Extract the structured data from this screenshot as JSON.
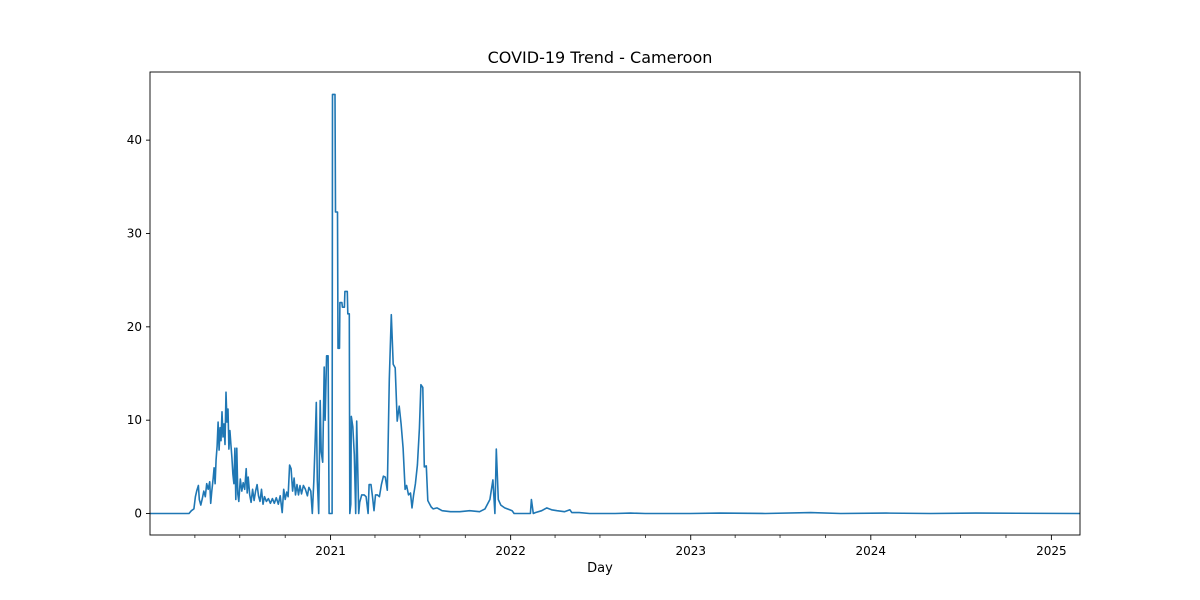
{
  "chart_data": {
    "type": "line",
    "title": "COVID-19 Trend - Cameroon",
    "xlabel": "Day",
    "ylabel": "",
    "x_axis_type": "date",
    "xlim": [
      "2020-01-01",
      "2025-02-28"
    ],
    "ylim": [
      -2.3,
      47.3
    ],
    "x_ticks": [
      {
        "date": "2021-01-01",
        "label": "2021"
      },
      {
        "date": "2022-01-01",
        "label": "2022"
      },
      {
        "date": "2023-01-01",
        "label": "2023"
      },
      {
        "date": "2024-01-01",
        "label": "2024"
      },
      {
        "date": "2025-01-01",
        "label": "2025"
      }
    ],
    "x_minor_ticks": [
      "2020-04-01",
      "2020-07-01",
      "2020-10-01",
      "2021-04-01",
      "2021-07-01",
      "2021-10-01",
      "2022-04-01",
      "2022-07-01",
      "2022-10-01",
      "2023-04-01",
      "2023-07-01",
      "2023-10-01",
      "2024-04-01",
      "2024-07-01",
      "2024-10-01"
    ],
    "y_ticks": [
      0,
      10,
      20,
      30,
      40
    ],
    "grid": false,
    "legend": false,
    "line_color": "#1f77b4",
    "series": [
      {
        "points": [
          [
            "2020-01-01",
            0
          ],
          [
            "2020-03-20",
            0
          ],
          [
            "2020-03-25",
            0.3
          ],
          [
            "2020-03-30",
            0.5
          ],
          [
            "2020-04-02",
            1.8
          ],
          [
            "2020-04-05",
            2.5
          ],
          [
            "2020-04-08",
            3.0
          ],
          [
            "2020-04-10",
            1.5
          ],
          [
            "2020-04-13",
            0.9
          ],
          [
            "2020-04-16",
            1.6
          ],
          [
            "2020-04-19",
            2.4
          ],
          [
            "2020-04-22",
            1.8
          ],
          [
            "2020-04-25",
            3.2
          ],
          [
            "2020-04-28",
            2.6
          ],
          [
            "2020-05-01",
            3.4
          ],
          [
            "2020-05-03",
            1.1
          ],
          [
            "2020-05-05",
            2.3
          ],
          [
            "2020-05-08",
            3.8
          ],
          [
            "2020-05-10",
            4.9
          ],
          [
            "2020-05-12",
            3.2
          ],
          [
            "2020-05-14",
            5.8
          ],
          [
            "2020-05-16",
            7.2
          ],
          [
            "2020-05-18",
            9.8
          ],
          [
            "2020-05-20",
            6.8
          ],
          [
            "2020-05-22",
            9.2
          ],
          [
            "2020-05-24",
            7.8
          ],
          [
            "2020-05-26",
            10.9
          ],
          [
            "2020-05-28",
            8.2
          ],
          [
            "2020-05-30",
            9.6
          ],
          [
            "2020-06-01",
            7.4
          ],
          [
            "2020-06-03",
            13.0
          ],
          [
            "2020-06-05",
            9.8
          ],
          [
            "2020-06-07",
            11.2
          ],
          [
            "2020-06-09",
            6.9
          ],
          [
            "2020-06-11",
            8.9
          ],
          [
            "2020-06-13",
            7.4
          ],
          [
            "2020-06-15",
            6.0
          ],
          [
            "2020-06-17",
            4.2
          ],
          [
            "2020-06-19",
            3.2
          ],
          [
            "2020-06-21",
            7.0
          ],
          [
            "2020-06-23",
            1.5
          ],
          [
            "2020-06-25",
            7.0
          ],
          [
            "2020-06-27",
            2.1
          ],
          [
            "2020-06-29",
            1.3
          ],
          [
            "2020-07-02",
            3.7
          ],
          [
            "2020-07-05",
            2.4
          ],
          [
            "2020-07-08",
            3.3
          ],
          [
            "2020-07-11",
            2.6
          ],
          [
            "2020-07-14",
            4.8
          ],
          [
            "2020-07-16",
            2.2
          ],
          [
            "2020-07-18",
            3.9
          ],
          [
            "2020-07-21",
            2.0
          ],
          [
            "2020-07-24",
            1.2
          ],
          [
            "2020-07-27",
            2.6
          ],
          [
            "2020-07-30",
            1.4
          ],
          [
            "2020-08-02",
            2.4
          ],
          [
            "2020-08-05",
            3.1
          ],
          [
            "2020-08-08",
            1.9
          ],
          [
            "2020-08-11",
            1.3
          ],
          [
            "2020-08-14",
            2.6
          ],
          [
            "2020-08-17",
            1.0
          ],
          [
            "2020-08-20",
            1.8
          ],
          [
            "2020-08-24",
            1.3
          ],
          [
            "2020-08-28",
            1.6
          ],
          [
            "2020-09-01",
            1.1
          ],
          [
            "2020-09-05",
            1.6
          ],
          [
            "2020-09-09",
            1.1
          ],
          [
            "2020-09-13",
            1.7
          ],
          [
            "2020-09-17",
            1.0
          ],
          [
            "2020-09-21",
            1.9
          ],
          [
            "2020-09-25",
            0.1
          ],
          [
            "2020-09-28",
            2.6
          ],
          [
            "2020-10-01",
            1.5
          ],
          [
            "2020-10-04",
            2.3
          ],
          [
            "2020-10-07",
            1.8
          ],
          [
            "2020-10-10",
            5.2
          ],
          [
            "2020-10-13",
            4.8
          ],
          [
            "2020-10-16",
            2.4
          ],
          [
            "2020-10-19",
            3.8
          ],
          [
            "2020-10-22",
            2.0
          ],
          [
            "2020-10-25",
            3.1
          ],
          [
            "2020-10-28",
            2.0
          ],
          [
            "2020-10-31",
            3.0
          ],
          [
            "2020-11-03",
            2.1
          ],
          [
            "2020-11-07",
            3.0
          ],
          [
            "2020-11-11",
            2.6
          ],
          [
            "2020-11-15",
            1.9
          ],
          [
            "2020-11-18",
            2.8
          ],
          [
            "2020-11-22",
            2.4
          ],
          [
            "2020-11-25",
            0
          ],
          [
            "2020-11-28",
            3.4
          ],
          [
            "2020-12-01",
            8.2
          ],
          [
            "2020-12-03",
            11.9
          ],
          [
            "2020-12-05",
            3.6
          ],
          [
            "2020-12-08",
            0
          ],
          [
            "2020-12-11",
            12.1
          ],
          [
            "2020-12-13",
            6.6
          ],
          [
            "2020-12-16",
            5.5
          ],
          [
            "2020-12-19",
            15.7
          ],
          [
            "2020-12-21",
            10.0
          ],
          [
            "2020-12-24",
            16.9
          ],
          [
            "2020-12-27",
            16.9
          ],
          [
            "2020-12-29",
            0
          ],
          [
            "2021-01-04",
            0
          ],
          [
            "2021-01-05",
            44.9
          ],
          [
            "2021-01-10",
            44.9
          ],
          [
            "2021-01-11",
            32.3
          ],
          [
            "2021-01-15",
            32.3
          ],
          [
            "2021-01-16",
            17.7
          ],
          [
            "2021-01-19",
            17.7
          ],
          [
            "2021-01-20",
            22.6
          ],
          [
            "2021-01-24",
            22.6
          ],
          [
            "2021-01-25",
            22.1
          ],
          [
            "2021-01-29",
            22.1
          ],
          [
            "2021-01-30",
            23.8
          ],
          [
            "2021-02-04",
            23.8
          ],
          [
            "2021-02-05",
            21.4
          ],
          [
            "2021-02-08",
            21.4
          ],
          [
            "2021-02-09",
            0
          ],
          [
            "2021-02-11",
            1.0
          ],
          [
            "2021-02-12",
            10.4
          ],
          [
            "2021-02-15",
            9.3
          ],
          [
            "2021-02-18",
            6.3
          ],
          [
            "2021-02-21",
            0
          ],
          [
            "2021-02-23",
            9.9
          ],
          [
            "2021-02-25",
            5.1
          ],
          [
            "2021-02-27",
            0
          ],
          [
            "2021-03-01",
            1.2
          ],
          [
            "2021-03-05",
            2.0
          ],
          [
            "2021-03-10",
            2.0
          ],
          [
            "2021-03-14",
            1.8
          ],
          [
            "2021-03-18",
            0
          ],
          [
            "2021-03-20",
            3.1
          ],
          [
            "2021-03-24",
            3.1
          ],
          [
            "2021-03-27",
            1.8
          ],
          [
            "2021-03-30",
            0.3
          ],
          [
            "2021-04-02",
            2.0
          ],
          [
            "2021-04-06",
            2.0
          ],
          [
            "2021-04-10",
            1.8
          ],
          [
            "2021-04-14",
            3.1
          ],
          [
            "2021-04-18",
            4.0
          ],
          [
            "2021-04-22",
            3.9
          ],
          [
            "2021-04-26",
            2.5
          ],
          [
            "2021-04-30",
            14.4
          ],
          [
            "2021-05-04",
            21.3
          ],
          [
            "2021-05-08",
            16.0
          ],
          [
            "2021-05-12",
            15.6
          ],
          [
            "2021-05-16",
            9.9
          ],
          [
            "2021-05-20",
            11.5
          ],
          [
            "2021-05-24",
            9.6
          ],
          [
            "2021-05-28",
            7.0
          ],
          [
            "2021-06-01",
            2.6
          ],
          [
            "2021-06-04",
            3.0
          ],
          [
            "2021-06-08",
            2.0
          ],
          [
            "2021-06-12",
            2.2
          ],
          [
            "2021-06-15",
            0.6
          ],
          [
            "2021-06-18",
            1.9
          ],
          [
            "2021-06-22",
            3.2
          ],
          [
            "2021-06-26",
            5.2
          ],
          [
            "2021-06-30",
            9.1
          ],
          [
            "2021-07-03",
            13.8
          ],
          [
            "2021-07-07",
            13.5
          ],
          [
            "2021-07-10",
            5.0
          ],
          [
            "2021-07-14",
            5.1
          ],
          [
            "2021-07-17",
            1.4
          ],
          [
            "2021-07-20",
            1.1
          ],
          [
            "2021-07-24",
            0.7
          ],
          [
            "2021-07-28",
            0.5
          ],
          [
            "2021-08-05",
            0.6
          ],
          [
            "2021-08-15",
            0.3
          ],
          [
            "2021-09-01",
            0.2
          ],
          [
            "2021-09-20",
            0.2
          ],
          [
            "2021-10-10",
            0.3
          ],
          [
            "2021-10-30",
            0.2
          ],
          [
            "2021-11-10",
            0.5
          ],
          [
            "2021-11-20",
            1.5
          ],
          [
            "2021-11-26",
            3.6
          ],
          [
            "2021-11-30",
            0
          ],
          [
            "2021-12-03",
            6.9
          ],
          [
            "2021-12-07",
            1.5
          ],
          [
            "2021-12-12",
            0.9
          ],
          [
            "2021-12-20",
            0.6
          ],
          [
            "2021-12-30",
            0.4
          ],
          [
            "2022-01-04",
            0.3
          ],
          [
            "2022-01-08",
            0
          ],
          [
            "2022-02-10",
            0
          ],
          [
            "2022-02-12",
            1.5
          ],
          [
            "2022-02-16",
            0
          ],
          [
            "2022-02-20",
            0.1
          ],
          [
            "2022-03-05",
            0.3
          ],
          [
            "2022-03-15",
            0.6
          ],
          [
            "2022-03-25",
            0.4
          ],
          [
            "2022-04-05",
            0.3
          ],
          [
            "2022-04-20",
            0.2
          ],
          [
            "2022-05-01",
            0.4
          ],
          [
            "2022-05-05",
            0.1
          ],
          [
            "2022-05-20",
            0.1
          ],
          [
            "2022-06-10",
            0
          ],
          [
            "2022-08-01",
            0
          ],
          [
            "2022-09-01",
            0.05
          ],
          [
            "2022-10-01",
            0
          ],
          [
            "2022-12-31",
            0
          ],
          [
            "2023-03-01",
            0.05
          ],
          [
            "2023-06-01",
            0
          ],
          [
            "2023-09-01",
            0.1
          ],
          [
            "2023-11-01",
            0
          ],
          [
            "2024-02-01",
            0.05
          ],
          [
            "2024-05-01",
            0
          ],
          [
            "2024-08-01",
            0.05
          ],
          [
            "2025-02-28",
            0
          ]
        ]
      }
    ]
  }
}
